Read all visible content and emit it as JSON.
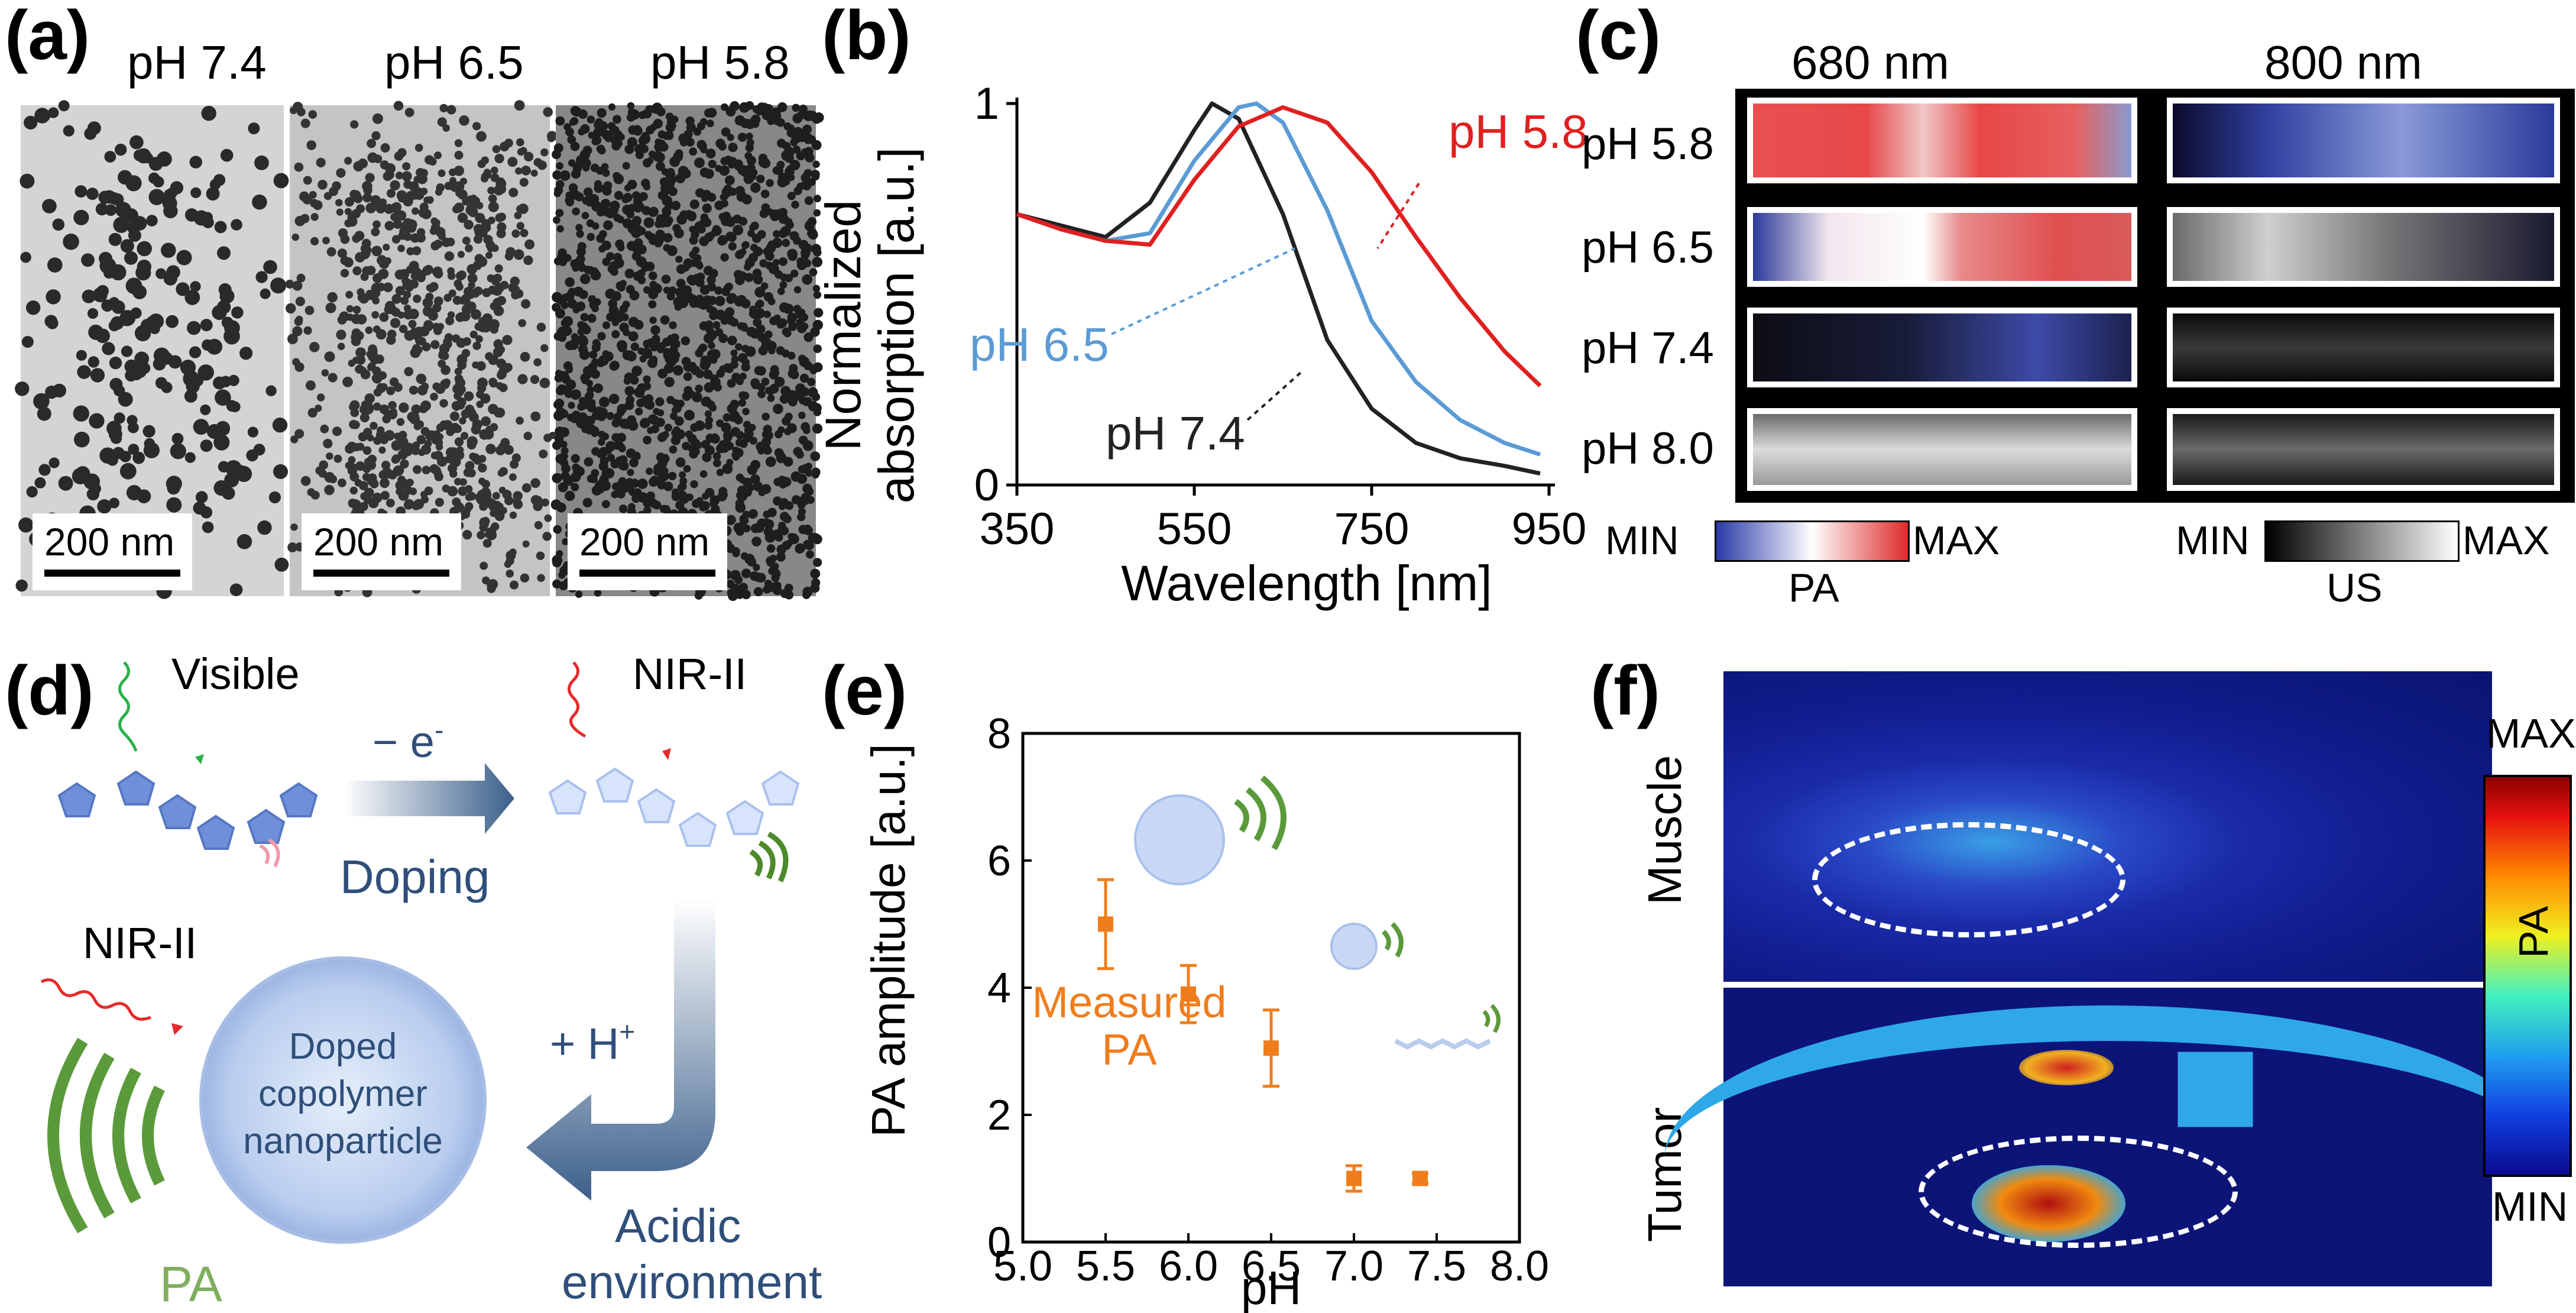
{
  "panels": {
    "a": "(a)",
    "b": "(b)",
    "c": "(c)",
    "d": "(d)",
    "e": "(e)",
    "f": "(f)"
  },
  "panel_a": {
    "ph_labels": [
      "pH 7.4",
      "pH 6.5",
      "pH 5.8"
    ],
    "scale_bar": "200 nm"
  },
  "panel_c": {
    "columns": [
      "680 nm",
      "800 nm"
    ],
    "rows": [
      "pH 5.8",
      "pH 6.5",
      "pH 7.4",
      "pH 8.0"
    ],
    "pa_bar": {
      "min": "MIN",
      "max": "MAX",
      "label": "PA"
    },
    "us_bar": {
      "min": "MIN",
      "max": "MAX",
      "label": "US"
    }
  },
  "panel_d": {
    "visible": "Visible",
    "nir_top": "NIR-II",
    "nir_left": "NIR-II",
    "minus_e": "− e",
    "minus_e_sup": "-",
    "doping": "Doping",
    "plus_h": "+ H",
    "plus_h_sup": "+",
    "acidic_1": "Acidic",
    "acidic_2": "environment",
    "particle_1": "Doped",
    "particle_2": "copolymer",
    "particle_3": "nanoparticle",
    "pa": "PA"
  },
  "panel_f": {
    "row_labels": [
      "Muscle",
      "Tumor"
    ],
    "colorbar": {
      "max": "MAX",
      "min": "MIN",
      "label": "PA"
    }
  },
  "colors": {
    "red": "#e02020",
    "blue": "#5b9bd5",
    "black": "#222222",
    "orange": "#f07d1c",
    "navy": "#2f4f7a",
    "green": "#5a9a3a"
  },
  "chart_data": [
    {
      "type": "line",
      "panel": "b",
      "xlabel": "Wavelength [nm]",
      "ylabel": "Normalized absorption [a.u.]",
      "xlim": [
        350,
        950
      ],
      "ylim": [
        0,
        1
      ],
      "xticks": [
        "350",
        "550",
        "750",
        "950"
      ],
      "yticks": [
        "0",
        "1"
      ],
      "series": [
        {
          "name": "pH 7.4",
          "color": "#222222",
          "x": [
            350,
            400,
            450,
            500,
            550,
            570,
            600,
            650,
            700,
            750,
            800,
            850,
            900,
            940
          ],
          "y": [
            0.71,
            0.68,
            0.65,
            0.74,
            0.93,
            1.0,
            0.96,
            0.71,
            0.38,
            0.2,
            0.11,
            0.07,
            0.05,
            0.03
          ]
        },
        {
          "name": "pH 6.5",
          "color": "#5b9bd5",
          "x": [
            350,
            400,
            450,
            500,
            550,
            600,
            620,
            650,
            700,
            750,
            800,
            850,
            900,
            940
          ],
          "y": [
            0.71,
            0.67,
            0.64,
            0.66,
            0.85,
            0.99,
            1.0,
            0.95,
            0.72,
            0.43,
            0.27,
            0.17,
            0.11,
            0.08
          ]
        },
        {
          "name": "pH 5.8",
          "color": "#e02020",
          "x": [
            350,
            400,
            450,
            500,
            550,
            600,
            650,
            700,
            750,
            800,
            850,
            900,
            940
          ],
          "y": [
            0.71,
            0.67,
            0.64,
            0.63,
            0.8,
            0.94,
            0.99,
            0.95,
            0.82,
            0.65,
            0.49,
            0.35,
            0.26
          ]
        }
      ],
      "annotations": [
        "pH 5.8",
        "pH 6.5",
        "pH 7.4"
      ]
    },
    {
      "type": "scatter",
      "panel": "e",
      "xlabel": "pH",
      "ylabel": "PA amplitude [a.u.]",
      "xlim": [
        5.0,
        8.0
      ],
      "ylim": [
        0,
        8
      ],
      "xticks": [
        "5.0",
        "5.5",
        "6.0",
        "6.5",
        "7.0",
        "7.5",
        "8.0"
      ],
      "yticks": [
        "0",
        "2",
        "4",
        "6",
        "8"
      ],
      "series": [
        {
          "name": "Measured PA",
          "color": "#f07d1c",
          "x": [
            5.5,
            6.0,
            6.5,
            7.0,
            7.4
          ],
          "y": [
            5.0,
            3.9,
            3.05,
            1.0,
            1.0
          ],
          "err": [
            0.7,
            0.45,
            0.6,
            0.2,
            0.08
          ]
        }
      ],
      "annotation_1": "Measured",
      "annotation_2": "PA"
    }
  ]
}
